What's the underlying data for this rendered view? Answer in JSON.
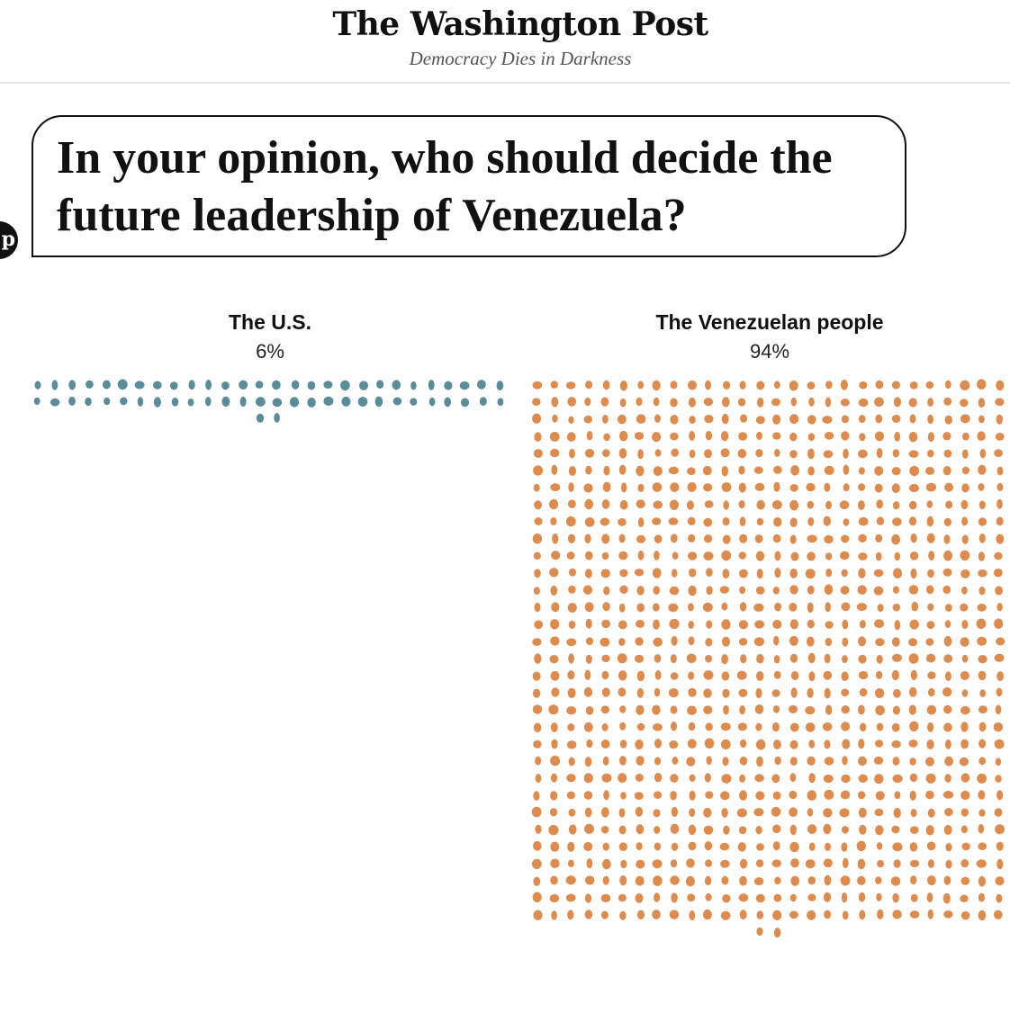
{
  "header": {
    "logo": "The Washington Post",
    "tagline": "Democracy Dies in Darkness"
  },
  "badge": {
    "letter": "p"
  },
  "question": "In your opinion, who should decide the future leadership of Venezuela?",
  "chart_data": {
    "type": "waffle",
    "title": "In your opinion, who should decide the future leadership of Venezuela?",
    "unit_description": "each dot represents one respondent",
    "series": [
      {
        "name": "The U.S.",
        "label": "6%",
        "percent": 6,
        "dot_count": 58,
        "color": "#5b8c99"
      },
      {
        "name": "The Venezuelan people",
        "label": "94%",
        "percent": 94,
        "dot_count": 898,
        "color": "#de8c4e"
      }
    ]
  }
}
